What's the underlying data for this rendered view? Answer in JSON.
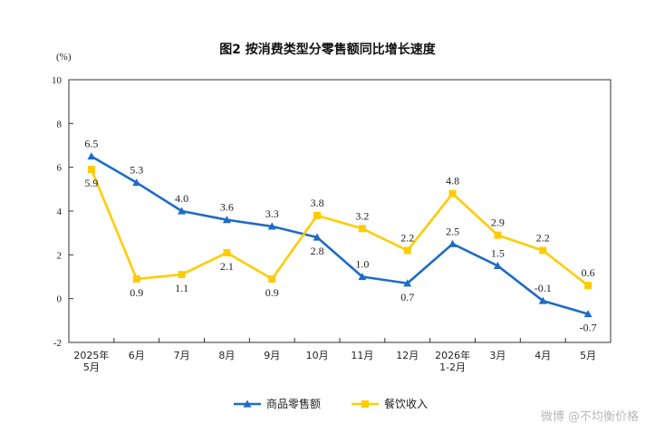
{
  "chart_data": {
    "type": "line",
    "title": "图2  按消费类型分零售额同比增长速度",
    "unit_label": "(%)",
    "ylim": [
      -2,
      10
    ],
    "yticks": [
      -2,
      0,
      2,
      4,
      6,
      8,
      10
    ],
    "categories": [
      [
        "2025年",
        "5月"
      ],
      [
        "6月"
      ],
      [
        "7月"
      ],
      [
        "8月"
      ],
      [
        "9月"
      ],
      [
        "10月"
      ],
      [
        "11月"
      ],
      [
        "12月"
      ],
      [
        "2026年",
        "1-2月"
      ],
      [
        "3月"
      ],
      [
        "4月"
      ],
      [
        "5月"
      ]
    ],
    "series": [
      {
        "name": "商品零售额",
        "color": "#1f6cc6",
        "marker": "triangle",
        "values": [
          6.5,
          5.3,
          4.0,
          3.6,
          3.3,
          2.8,
          1.0,
          0.7,
          2.5,
          1.5,
          -0.1,
          -0.7
        ],
        "labels": [
          "6.5",
          "5.3",
          "4.0",
          "3.6",
          "3.3",
          "2.8",
          "1.0",
          "0.7",
          "2.5",
          "1.5",
          "-0.1",
          "-0.7"
        ]
      },
      {
        "name": "餐饮收入",
        "color": "#ffcc00",
        "marker": "square",
        "values": [
          5.9,
          0.9,
          1.1,
          2.1,
          0.9,
          3.8,
          3.2,
          2.2,
          4.8,
          2.9,
          2.2,
          0.6
        ],
        "labels": [
          "5.9",
          "0.9",
          "1.1",
          "2.1",
          "0.9",
          "3.8",
          "3.2",
          "2.2",
          "4.8",
          "2.9",
          "2.2",
          "0.6"
        ]
      }
    ],
    "legend_position": "bottom-center",
    "grid": false
  },
  "watermark": "微博 @不均衡价格"
}
